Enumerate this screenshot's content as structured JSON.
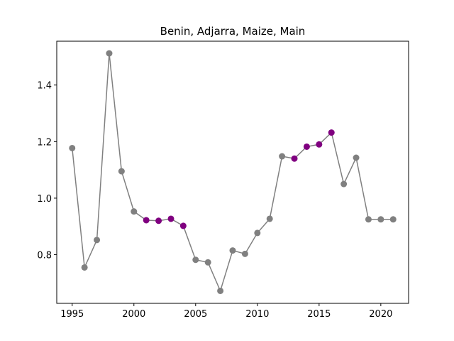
{
  "chart_data": {
    "type": "line",
    "title": "Benin, Adjarra, Maize, Main",
    "xlabel": "",
    "ylabel": "",
    "xlim": [
      1993.75,
      2022.25
    ],
    "ylim": [
      0.628,
      1.555
    ],
    "xticks": [
      1995,
      2000,
      2005,
      2010,
      2015,
      2020
    ],
    "yticks": [
      0.8,
      1.0,
      1.2,
      1.4
    ],
    "ytick_labels": [
      "0.8",
      "1.0",
      "1.2",
      "1.4"
    ],
    "grid": false,
    "legend": "none",
    "line_color": "#808080",
    "colors": {
      "normal": "#808080",
      "highlight": "#800080"
    },
    "points": [
      {
        "x": 1995,
        "y": 1.177,
        "highlight": false
      },
      {
        "x": 1996,
        "y": 0.755,
        "highlight": false
      },
      {
        "x": 1997,
        "y": 0.852,
        "highlight": false
      },
      {
        "x": 1998,
        "y": 1.512,
        "highlight": false
      },
      {
        "x": 1999,
        "y": 1.095,
        "highlight": false
      },
      {
        "x": 2000,
        "y": 0.953,
        "highlight": false
      },
      {
        "x": 2001,
        "y": 0.922,
        "highlight": true
      },
      {
        "x": 2002,
        "y": 0.92,
        "highlight": true
      },
      {
        "x": 2003,
        "y": 0.927,
        "highlight": true
      },
      {
        "x": 2004,
        "y": 0.902,
        "highlight": true
      },
      {
        "x": 2005,
        "y": 0.782,
        "highlight": false
      },
      {
        "x": 2006,
        "y": 0.773,
        "highlight": false
      },
      {
        "x": 2007,
        "y": 0.672,
        "highlight": false
      },
      {
        "x": 2008,
        "y": 0.815,
        "highlight": false
      },
      {
        "x": 2009,
        "y": 0.803,
        "highlight": false
      },
      {
        "x": 2010,
        "y": 0.877,
        "highlight": false
      },
      {
        "x": 2011,
        "y": 0.927,
        "highlight": false
      },
      {
        "x": 2012,
        "y": 1.148,
        "highlight": false
      },
      {
        "x": 2013,
        "y": 1.14,
        "highlight": true
      },
      {
        "x": 2014,
        "y": 1.182,
        "highlight": true
      },
      {
        "x": 2015,
        "y": 1.19,
        "highlight": true
      },
      {
        "x": 2016,
        "y": 1.232,
        "highlight": true
      },
      {
        "x": 2017,
        "y": 1.05,
        "highlight": false
      },
      {
        "x": 2018,
        "y": 1.143,
        "highlight": false
      },
      {
        "x": 2019,
        "y": 0.925,
        "highlight": false
      },
      {
        "x": 2020,
        "y": 0.925,
        "highlight": false
      },
      {
        "x": 2021,
        "y": 0.925,
        "highlight": false
      }
    ]
  }
}
